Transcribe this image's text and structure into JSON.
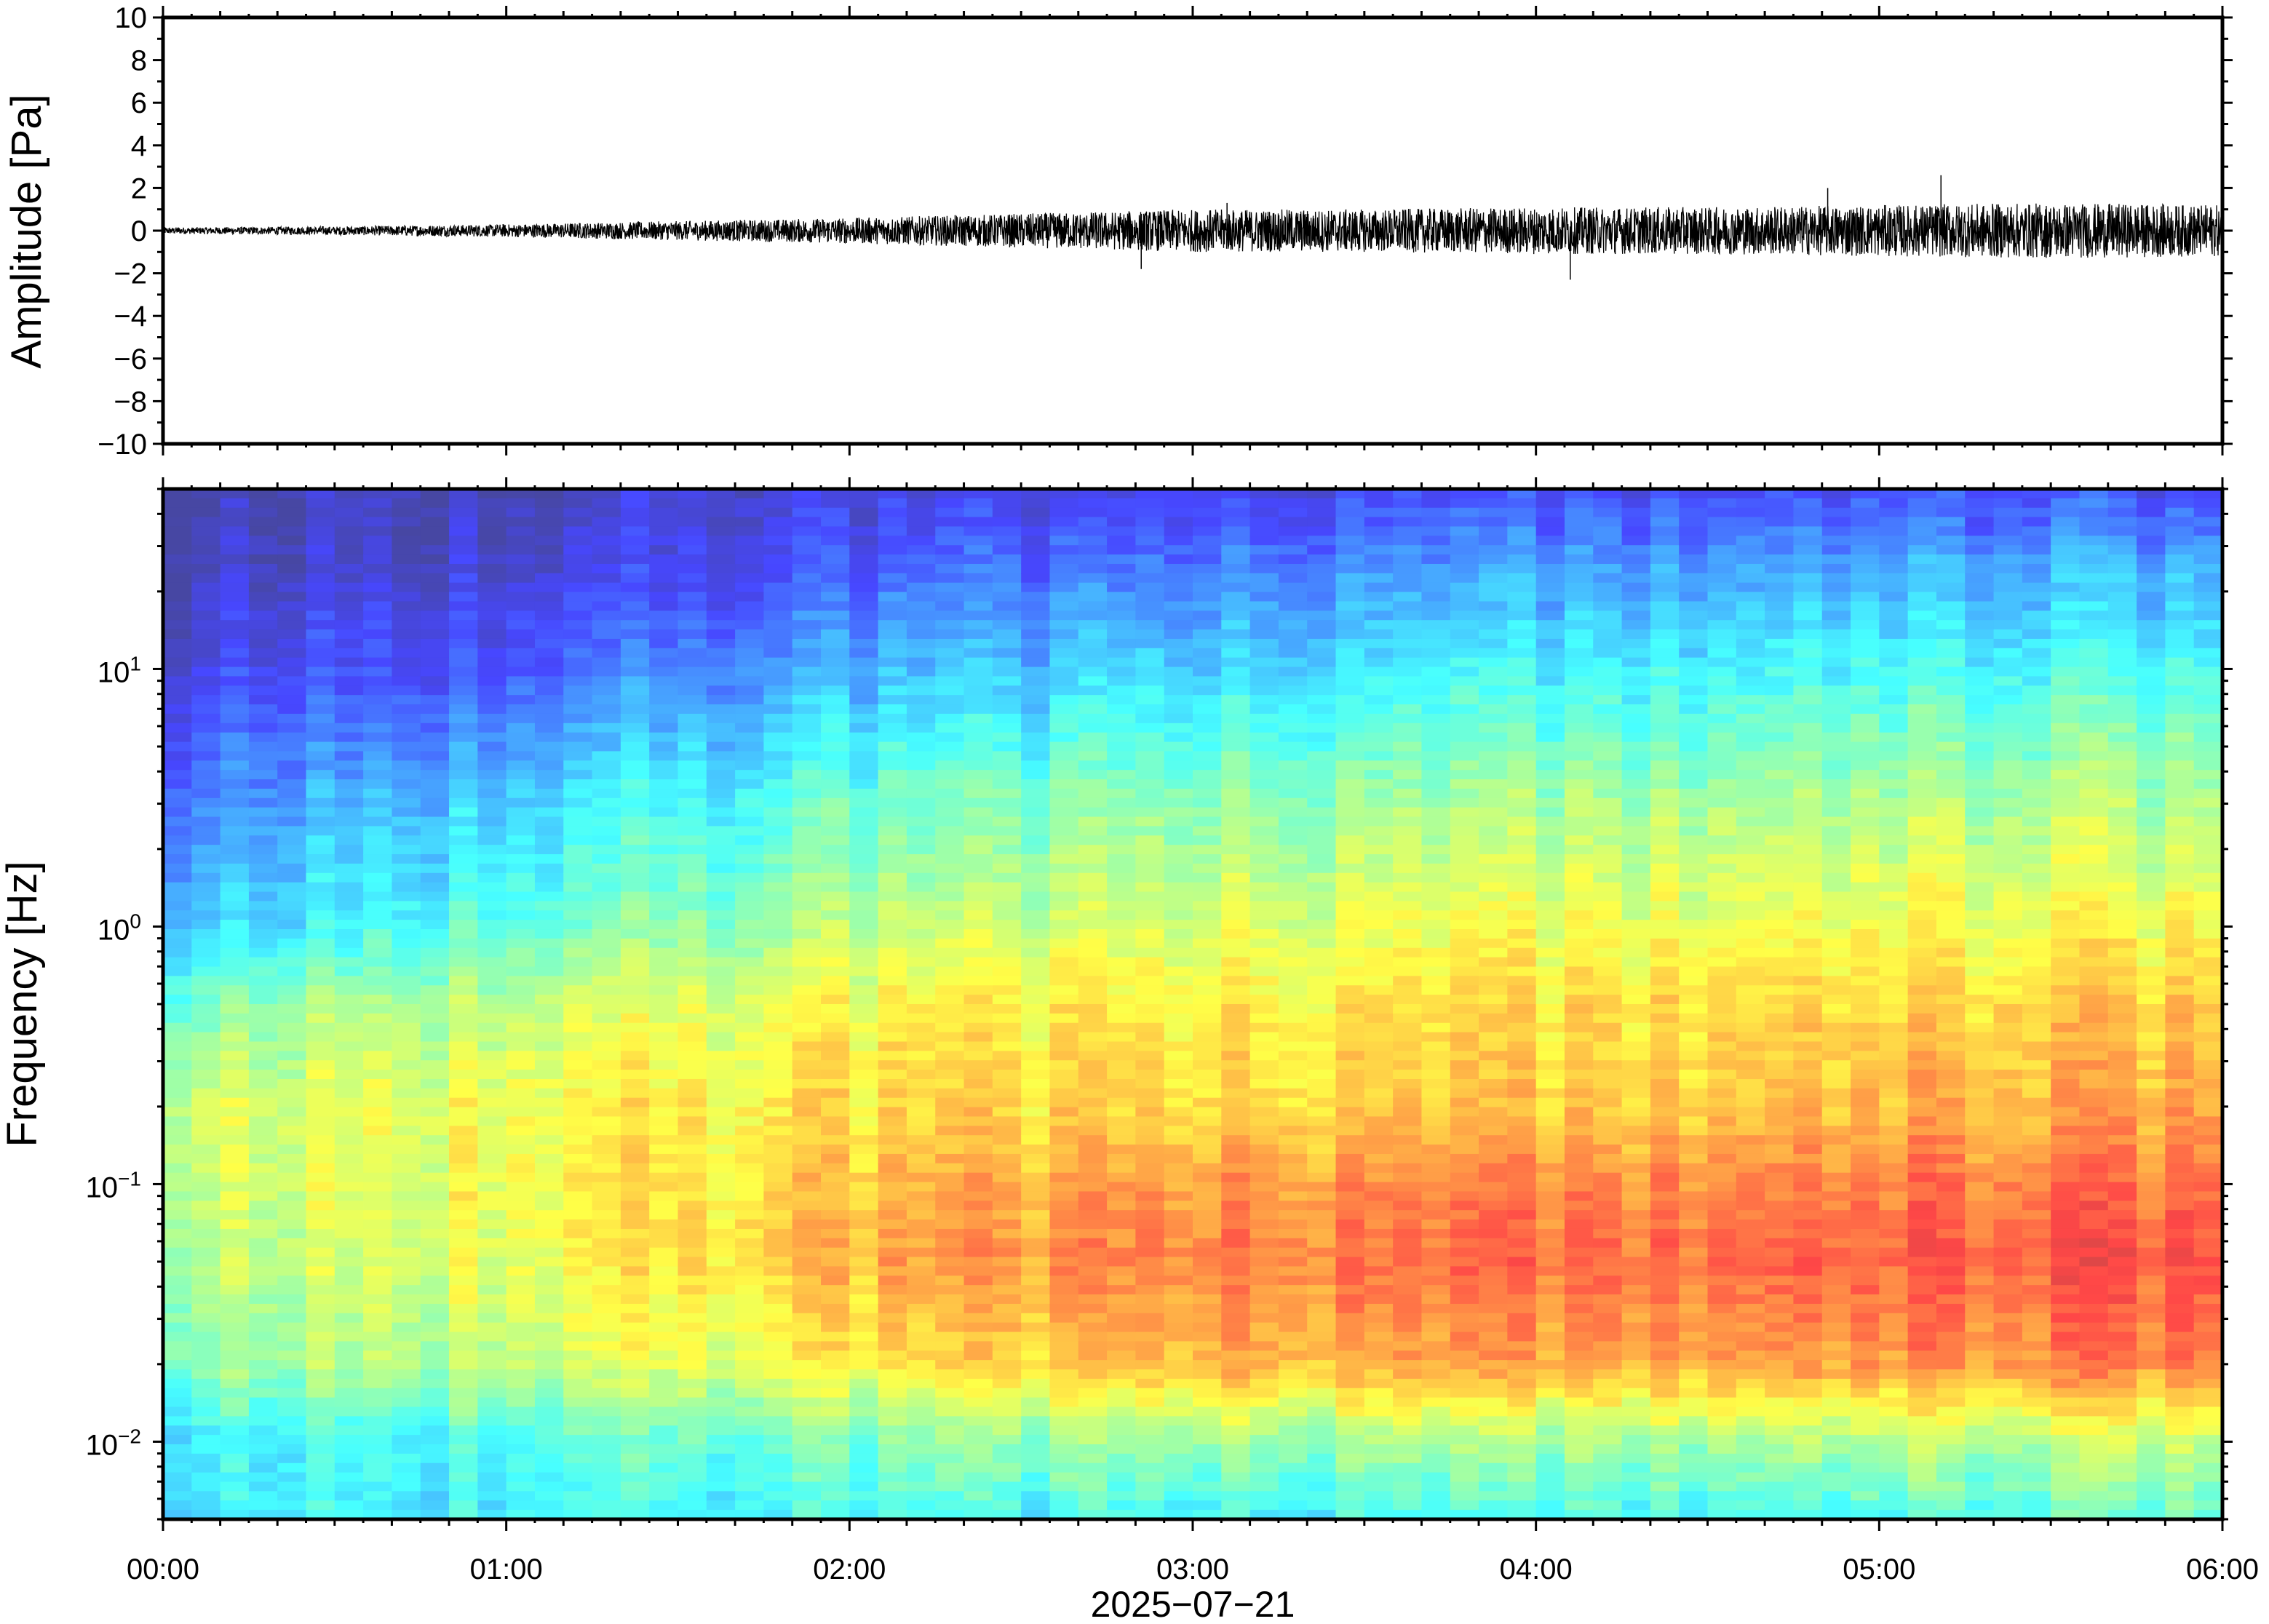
{
  "chart_data": [
    {
      "type": "line",
      "ylabel": "Amplitude [Pa]",
      "ylim": [
        -10,
        10
      ],
      "yticks": [
        10,
        8,
        6,
        4,
        2,
        0,
        -2,
        -4,
        -6,
        -8,
        -10
      ],
      "ytick_labels": [
        "10",
        "8",
        "6",
        "4",
        "2",
        "0",
        "−2",
        "−4",
        "−6",
        "−8",
        "−10"
      ],
      "x_range_hours": [
        0,
        6
      ],
      "grid": false,
      "series": [
        {
          "x_hours": [
            0.0,
            0.5,
            1.0,
            1.5,
            2.0,
            2.5,
            3.0,
            3.5,
            4.0,
            4.5,
            5.0,
            5.5,
            6.0
          ],
          "envelope_pa": [
            0.15,
            0.2,
            0.3,
            0.45,
            0.6,
            0.8,
            1.0,
            1.0,
            1.1,
            1.1,
            1.2,
            1.3,
            1.2
          ],
          "peaks": [
            {
              "x_hours": 2.85,
              "value": -1.8
            },
            {
              "x_hours": 3.1,
              "value": 1.3
            },
            {
              "x_hours": 4.1,
              "value": -2.3
            },
            {
              "x_hours": 5.18,
              "value": 2.6
            },
            {
              "x_hours": 4.85,
              "value": 2.0
            }
          ],
          "color": "#000000"
        }
      ]
    },
    {
      "type": "heatmap",
      "ylabel": "Frequency [Hz]",
      "yscale": "log",
      "ylim": [
        0.005,
        50
      ],
      "yticks": [
        0.01,
        0.1,
        1,
        10
      ],
      "ytick_labels": [
        {
          "base": "10",
          "exp": "−2"
        },
        {
          "base": "10",
          "exp": "−1"
        },
        {
          "base": "10",
          "exp": "0"
        },
        {
          "base": "10",
          "exp": "1"
        }
      ],
      "xlabel": "2025−07−21",
      "x_range_hours": [
        0,
        6
      ],
      "xtick_labels": [
        "00:00",
        "01:00",
        "02:00",
        "03:00",
        "04:00",
        "05:00",
        "06:00"
      ],
      "colormap": [
        "#00007f",
        "#0000ff",
        "#007fff",
        "#00ffff",
        "#7fff7f",
        "#ffff00",
        "#ff7f00",
        "#ff0000",
        "#7f0000"
      ],
      "colormap_display_alpha": 0.72,
      "profile_hours": [
        0,
        1,
        2,
        3,
        4,
        5,
        6
      ],
      "profile_log10_freq": [
        -2.3,
        -2.0,
        -1.7,
        -1.3,
        -1.0,
        -0.7,
        -0.3,
        0.0,
        0.5,
        1.0,
        1.4,
        1.7
      ],
      "intensity": [
        [
          0.35,
          0.35,
          0.48,
          0.52,
          0.55,
          0.56,
          0.45,
          0.3,
          0.2,
          0.1,
          0.04,
          0.02
        ],
        [
          0.36,
          0.4,
          0.55,
          0.6,
          0.62,
          0.62,
          0.55,
          0.42,
          0.32,
          0.16,
          0.07,
          0.04
        ],
        [
          0.38,
          0.45,
          0.63,
          0.72,
          0.7,
          0.66,
          0.62,
          0.52,
          0.42,
          0.26,
          0.14,
          0.07
        ],
        [
          0.37,
          0.5,
          0.72,
          0.8,
          0.76,
          0.68,
          0.64,
          0.58,
          0.48,
          0.32,
          0.2,
          0.1
        ],
        [
          0.37,
          0.5,
          0.74,
          0.82,
          0.78,
          0.69,
          0.66,
          0.6,
          0.5,
          0.36,
          0.24,
          0.12
        ],
        [
          0.4,
          0.52,
          0.76,
          0.84,
          0.8,
          0.72,
          0.68,
          0.62,
          0.52,
          0.38,
          0.26,
          0.13
        ],
        [
          0.42,
          0.55,
          0.8,
          0.86,
          0.82,
          0.74,
          0.7,
          0.62,
          0.52,
          0.38,
          0.26,
          0.13
        ]
      ]
    }
  ]
}
